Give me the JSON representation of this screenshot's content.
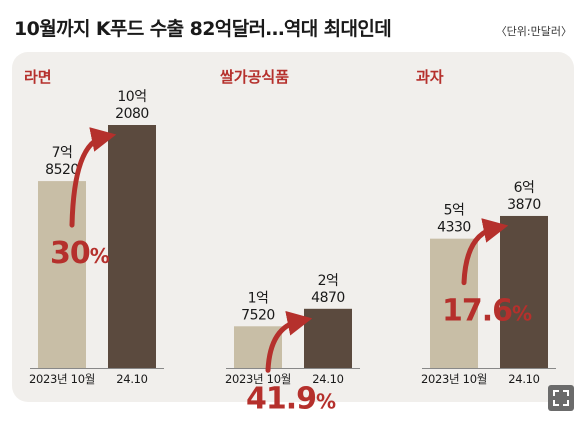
{
  "header": {
    "title": "10월까지 K푸드 수출 82억달러…역대 최대인데",
    "unit": "〈단위:만달러〉"
  },
  "colors": {
    "bar_2023": "#c8bea6",
    "bar_2024": "#5b4a3e",
    "accent": "#b5302c",
    "panel": "#f1efec"
  },
  "chart_data": [
    {
      "type": "bar",
      "title": "라면",
      "categories": [
        "2023년 10월",
        "24.10"
      ],
      "values": [
        78520,
        102080
      ],
      "value_labels": [
        [
          "7억",
          "8520"
        ],
        [
          "10억",
          "2080"
        ]
      ],
      "annotation": {
        "number": "30",
        "unit": "%"
      }
    },
    {
      "type": "bar",
      "title": "쌀가공식품",
      "categories": [
        "2023년 10월",
        "24.10"
      ],
      "values": [
        17520,
        24870
      ],
      "value_labels": [
        [
          "1억",
          "7520"
        ],
        [
          "2억",
          "4870"
        ]
      ],
      "annotation": {
        "number": "41.9",
        "unit": "%"
      }
    },
    {
      "type": "bar",
      "title": "과자",
      "categories": [
        "2023년 10월",
        "24.10"
      ],
      "values": [
        54330,
        63870
      ],
      "value_labels": [
        [
          "5억",
          "4330"
        ],
        [
          "6억",
          "3870"
        ]
      ],
      "annotation": {
        "number": "17.6",
        "unit": "%"
      }
    }
  ],
  "controls": {
    "expand_icon": "expand-icon"
  }
}
